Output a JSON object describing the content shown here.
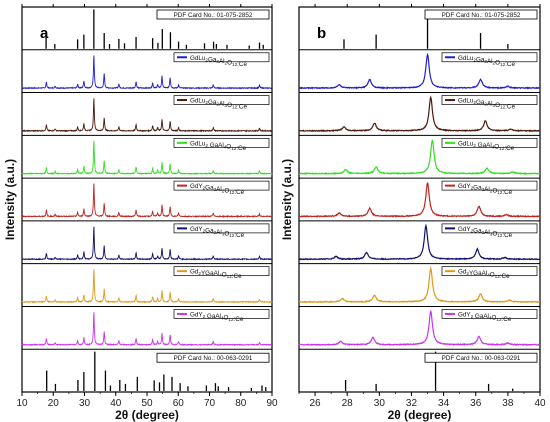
{
  "chart_data": [
    {
      "type": "line",
      "panel_label": "a",
      "xlabel": "2θ (degree)",
      "ylabel": "Intensity (a.u.)",
      "xlim": [
        10,
        90
      ],
      "xticks": [
        10,
        20,
        30,
        40,
        50,
        60,
        70,
        80,
        90
      ],
      "references": {
        "top": {
          "name": "PDF Card No.: 01-075-2852",
          "peaks": [
            [
              17.7,
              0.33
            ],
            [
              20.5,
              0.12
            ],
            [
              27.8,
              0.24
            ],
            [
              29.8,
              0.36
            ],
            [
              33.0,
              1.0
            ],
            [
              36.3,
              0.4
            ],
            [
              38.0,
              0.12
            ],
            [
              41.0,
              0.25
            ],
            [
              42.8,
              0.14
            ],
            [
              46.5,
              0.3
            ],
            [
              51.8,
              0.27
            ],
            [
              53.5,
              0.15
            ],
            [
              54.9,
              0.5
            ],
            [
              57.5,
              0.42
            ],
            [
              60.1,
              0.18
            ],
            [
              62.6,
              0.1
            ],
            [
              68.4,
              0.14
            ],
            [
              71.3,
              0.18
            ],
            [
              72.2,
              0.12
            ],
            [
              75.6,
              0.1
            ],
            [
              82.7,
              0.08
            ],
            [
              86.0,
              0.16
            ],
            [
              87.2,
              0.1
            ]
          ]
        },
        "bottom": {
          "name": "PDF Card No.: 00-063-0291",
          "peaks": [
            [
              17.9,
              0.52
            ],
            [
              20.7,
              0.18
            ],
            [
              27.9,
              0.28
            ],
            [
              29.8,
              0.48
            ],
            [
              33.3,
              1.0
            ],
            [
              36.7,
              0.52
            ],
            [
              38.3,
              0.14
            ],
            [
              41.3,
              0.28
            ],
            [
              43.1,
              0.18
            ],
            [
              46.9,
              0.36
            ],
            [
              52.3,
              0.27
            ],
            [
              54.0,
              0.22
            ],
            [
              55.4,
              0.42
            ],
            [
              58.0,
              0.36
            ],
            [
              60.6,
              0.2
            ],
            [
              63.1,
              0.12
            ],
            [
              69.0,
              0.14
            ],
            [
              71.9,
              0.2
            ],
            [
              72.8,
              0.12
            ],
            [
              76.1,
              0.1
            ],
            [
              83.4,
              0.08
            ],
            [
              86.8,
              0.14
            ],
            [
              88.0,
              0.1
            ]
          ]
        }
      },
      "series": [
        {
          "name": "GdLu2Ga3Al2O12:Ce",
          "color": "#1f1fd0",
          "shift": 0.0,
          "peaks": [
            [
              17.8,
              0.18
            ],
            [
              20.6,
              0.06
            ],
            [
              27.8,
              0.12
            ],
            [
              29.8,
              0.22
            ],
            [
              33.0,
              1.0
            ],
            [
              36.3,
              0.44
            ],
            [
              41.0,
              0.12
            ],
            [
              46.5,
              0.2
            ],
            [
              51.8,
              0.16
            ],
            [
              53.4,
              0.1
            ],
            [
              54.8,
              0.36
            ],
            [
              57.4,
              0.32
            ],
            [
              60.1,
              0.1
            ],
            [
              71.2,
              0.1
            ],
            [
              86.0,
              0.08
            ]
          ]
        },
        {
          "name": "GdLu2Ga2Al3O12:Ce",
          "color": "#4a1a0c",
          "shift": 0.0,
          "peaks": [
            [
              17.8,
              0.18
            ],
            [
              20.6,
              0.06
            ],
            [
              27.8,
              0.12
            ],
            [
              29.8,
              0.22
            ],
            [
              33.0,
              1.0
            ],
            [
              36.3,
              0.4
            ],
            [
              41.0,
              0.12
            ],
            [
              46.5,
              0.2
            ],
            [
              51.8,
              0.16
            ],
            [
              53.4,
              0.1
            ],
            [
              54.8,
              0.34
            ],
            [
              57.4,
              0.3
            ],
            [
              60.1,
              0.1
            ],
            [
              71.2,
              0.1
            ],
            [
              86.0,
              0.08
            ]
          ]
        },
        {
          "name": "GdLu2 GaAl4O12:Ce",
          "color": "#33dd22",
          "shift": 0.0,
          "peaks": [
            [
              17.8,
              0.18
            ],
            [
              20.6,
              0.06
            ],
            [
              27.8,
              0.12
            ],
            [
              29.8,
              0.22
            ],
            [
              33.0,
              1.0
            ],
            [
              36.3,
              0.4
            ],
            [
              41.0,
              0.12
            ],
            [
              46.5,
              0.2
            ],
            [
              51.8,
              0.16
            ],
            [
              53.4,
              0.1
            ],
            [
              54.8,
              0.34
            ],
            [
              57.4,
              0.3
            ],
            [
              60.1,
              0.1
            ],
            [
              71.2,
              0.1
            ],
            [
              86.0,
              0.08
            ]
          ]
        },
        {
          "name": "GdY2Ga3Al2O12:Ce",
          "color": "#c0241c",
          "shift": 0.0,
          "peaks": [
            [
              17.8,
              0.18
            ],
            [
              20.6,
              0.06
            ],
            [
              27.8,
              0.12
            ],
            [
              29.8,
              0.22
            ],
            [
              33.0,
              1.0
            ],
            [
              36.3,
              0.4
            ],
            [
              41.0,
              0.12
            ],
            [
              46.5,
              0.2
            ],
            [
              51.8,
              0.16
            ],
            [
              53.4,
              0.1
            ],
            [
              54.8,
              0.34
            ],
            [
              57.4,
              0.3
            ],
            [
              60.1,
              0.1
            ],
            [
              71.2,
              0.1
            ],
            [
              86.0,
              0.08
            ]
          ]
        },
        {
          "name": "GdY2Ga2Al3O12:Ce",
          "color": "#12126e",
          "shift": 0.0,
          "peaks": [
            [
              17.8,
              0.18
            ],
            [
              20.6,
              0.06
            ],
            [
              27.8,
              0.12
            ],
            [
              29.8,
              0.22
            ],
            [
              33.0,
              1.0
            ],
            [
              36.3,
              0.4
            ],
            [
              41.0,
              0.12
            ],
            [
              46.5,
              0.2
            ],
            [
              51.8,
              0.16
            ],
            [
              53.4,
              0.1
            ],
            [
              54.8,
              0.34
            ],
            [
              57.4,
              0.3
            ],
            [
              60.1,
              0.1
            ],
            [
              71.2,
              0.1
            ],
            [
              86.0,
              0.08
            ]
          ]
        },
        {
          "name": "Gd2YGaAl4O12:Ce",
          "color": "#e09a1a",
          "shift": 0.0,
          "peaks": [
            [
              17.8,
              0.18
            ],
            [
              20.6,
              0.06
            ],
            [
              27.8,
              0.12
            ],
            [
              29.8,
              0.22
            ],
            [
              33.0,
              1.0
            ],
            [
              36.3,
              0.4
            ],
            [
              41.0,
              0.12
            ],
            [
              46.5,
              0.2
            ],
            [
              51.8,
              0.16
            ],
            [
              53.4,
              0.1
            ],
            [
              54.8,
              0.34
            ],
            [
              57.4,
              0.3
            ],
            [
              60.1,
              0.1
            ],
            [
              71.2,
              0.1
            ],
            [
              86.0,
              0.08
            ]
          ]
        },
        {
          "name": "GdY2 GaAl4O12:Ce",
          "color": "#cc33ee",
          "shift": 0.0,
          "peaks": [
            [
              17.8,
              0.18
            ],
            [
              20.6,
              0.06
            ],
            [
              27.8,
              0.12
            ],
            [
              29.8,
              0.22
            ],
            [
              33.0,
              1.0
            ],
            [
              36.3,
              0.4
            ],
            [
              41.0,
              0.12
            ],
            [
              46.5,
              0.2
            ],
            [
              51.8,
              0.16
            ],
            [
              53.4,
              0.1
            ],
            [
              54.8,
              0.34
            ],
            [
              57.4,
              0.3
            ],
            [
              60.1,
              0.1
            ],
            [
              71.2,
              0.1
            ],
            [
              86.0,
              0.08
            ]
          ]
        }
      ]
    },
    {
      "type": "line",
      "panel_label": "b",
      "xlabel": "2θ (degree)",
      "ylabel": "Intensity (a.u.)",
      "xlim": [
        25,
        40
      ],
      "xticks": [
        26,
        28,
        30,
        32,
        34,
        36,
        38,
        40
      ],
      "references": {
        "top": {
          "name": "PDF Card No.: 01-075-2852",
          "peaks": [
            [
              27.8,
              0.24
            ],
            [
              29.8,
              0.36
            ],
            [
              33.0,
              1.0
            ],
            [
              36.3,
              0.4
            ],
            [
              38.0,
              0.12
            ]
          ]
        },
        "bottom": {
          "name": "PDF Card No.: 00-063-0291",
          "peaks": [
            [
              27.9,
              0.28
            ],
            [
              29.8,
              0.18
            ],
            [
              33.5,
              1.0
            ],
            [
              36.8,
              0.18
            ],
            [
              38.3,
              0.06
            ]
          ]
        }
      },
      "series": [
        {
          "name": "GdLu2Ga3Al2O12:Ce",
          "color": "#1f1fd0",
          "peaks": [
            [
              27.5,
              0.1
            ],
            [
              29.4,
              0.25
            ],
            [
              33.0,
              1.0
            ],
            [
              36.3,
              0.26
            ],
            [
              38.0,
              0.05
            ]
          ]
        },
        {
          "name": "GdLu2Ga2Al3O12:Ce",
          "color": "#4a1a0c",
          "peaks": [
            [
              27.8,
              0.12
            ],
            [
              29.7,
              0.23
            ],
            [
              33.2,
              1.0
            ],
            [
              36.6,
              0.3
            ],
            [
              38.2,
              0.05
            ]
          ]
        },
        {
          "name": "GdLu2 GaAl4O12:Ce",
          "color": "#33dd22",
          "peaks": [
            [
              27.9,
              0.12
            ],
            [
              29.8,
              0.2
            ],
            [
              33.3,
              1.0
            ],
            [
              36.7,
              0.16
            ],
            [
              38.3,
              0.05
            ]
          ]
        },
        {
          "name": "GdY2Ga3Al2O12:Ce",
          "color": "#c0241c",
          "peaks": [
            [
              27.5,
              0.1
            ],
            [
              29.4,
              0.24
            ],
            [
              33.0,
              1.0
            ],
            [
              36.2,
              0.3
            ],
            [
              37.9,
              0.05
            ]
          ]
        },
        {
          "name": "GdY2Ga2Al3O12:Ce",
          "color": "#12126e",
          "peaks": [
            [
              27.3,
              0.08
            ],
            [
              29.2,
              0.2
            ],
            [
              32.9,
              1.0
            ],
            [
              36.1,
              0.3
            ],
            [
              37.8,
              0.05
            ]
          ]
        },
        {
          "name": "Gd2YGaAl4O12:Ce",
          "color": "#e09a1a",
          "peaks": [
            [
              27.7,
              0.1
            ],
            [
              29.7,
              0.2
            ],
            [
              33.2,
              1.0
            ],
            [
              36.3,
              0.24
            ],
            [
              38.1,
              0.05
            ]
          ]
        },
        {
          "name": "GdY2 GaAl4O12:Ce",
          "color": "#cc33ee",
          "peaks": [
            [
              27.6,
              0.1
            ],
            [
              29.6,
              0.22
            ],
            [
              33.2,
              1.0
            ],
            [
              36.2,
              0.24
            ],
            [
              38.0,
              0.05
            ]
          ]
        }
      ]
    }
  ],
  "legend_labels": [
    {
      "base": "GdLu",
      "sub1": "2",
      "mid": "Ga",
      "sub2": "3",
      "mid2": "Al",
      "sub3": "2",
      "tail": "O",
      "sub4": "12",
      "end": ":Ce"
    },
    {
      "base": "GdLu",
      "sub1": "2",
      "mid": "Ga",
      "sub2": "2",
      "mid2": "Al",
      "sub3": "3",
      "tail": "O",
      "sub4": "12",
      "end": ":Ce"
    },
    {
      "base": "GdLu",
      "sub1": "2",
      "mid": " Ga",
      "sub2": "",
      "mid2": "Al",
      "sub3": "4",
      "tail": "O",
      "sub4": "12",
      "end": ":Ce"
    },
    {
      "base": "GdY",
      "sub1": "2",
      "mid": "Ga",
      "sub2": "3",
      "mid2": "Al",
      "sub3": "2",
      "tail": "O",
      "sub4": "12",
      "end": ":Ce"
    },
    {
      "base": "GdY",
      "sub1": "2",
      "mid": "Ga",
      "sub2": "2",
      "mid2": "Al",
      "sub3": "3",
      "tail": "O",
      "sub4": "12",
      "end": ":Ce"
    },
    {
      "base": "Gd",
      "sub1": "2",
      "mid": "YGa",
      "sub2": "",
      "mid2": "Al",
      "sub3": "4",
      "tail": "O",
      "sub4": "12",
      "end": ":Ce"
    },
    {
      "base": "GdY",
      "sub1": "2",
      "mid": " Ga",
      "sub2": "",
      "mid2": "Al",
      "sub3": "4",
      "tail": "O",
      "sub4": "12",
      "end": ":Ce"
    }
  ]
}
